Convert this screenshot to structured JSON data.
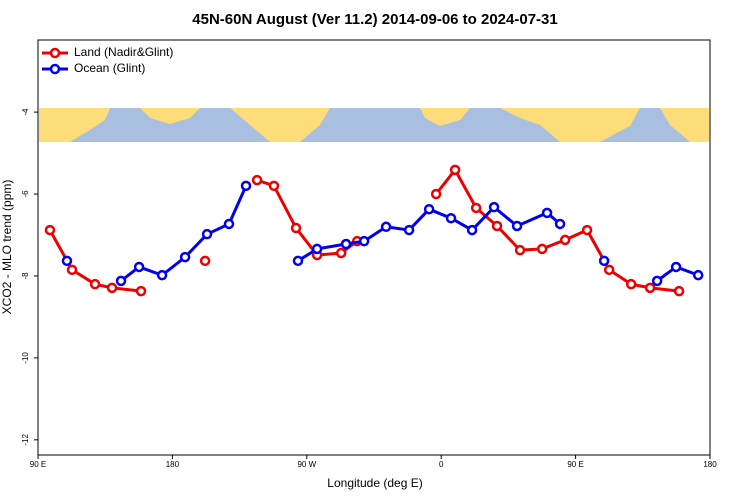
{
  "chart_data": {
    "type": "line",
    "title": "45N-60N August (Ver 11.2)   2014-09-06 to 2024-07-31",
    "x_label": "Longitude (deg E)",
    "y_label": "XCO2 - MLO trend (ppm)",
    "xlim": [
      90,
      540
    ],
    "xticks": [
      {
        "value": 90,
        "label": "90 E"
      },
      180,
      {
        "value": 270,
        "label": "90 W"
      },
      {
        "value": 360,
        "label": "0"
      },
      {
        "value": 450,
        "label": "90 E"
      },
      {
        "value": 540,
        "label": "180"
      }
    ],
    "ylim": [
      -12.37,
      -2.24
    ],
    "yticks": [
      -4,
      -6,
      -8,
      -10,
      -12
    ],
    "legend": "upper left",
    "series": [
      {
        "name": "Land (Nadir&Glint)",
        "color": "#ee0000",
        "x": [
          98,
          112.8,
          128.2,
          139.6,
          159,
          null,
          201.9,
          null,
          236.7,
          248,
          262.8,
          276.9,
          293,
          303.7,
          null,
          356.6,
          369.3,
          383.4,
          397.4,
          412.8,
          427.6,
          443,
          457.7,
          472.5,
          487.2,
          499.9,
          519.3
        ],
        "values": [
          -6.88,
          -7.85,
          -8.2,
          -8.29,
          -8.37,
          null,
          -7.63,
          null,
          -5.66,
          -5.8,
          -6.83,
          -7.49,
          -7.44,
          -7.15,
          null,
          -6.0,
          -5.41,
          -6.34,
          -6.78,
          -7.37,
          -7.34,
          -7.12,
          -6.88,
          -7.85,
          -8.2,
          -8.29,
          -8.37
        ]
      },
      {
        "name": "Ocean (Glint)",
        "color": "#0000ee",
        "x": [
          109.4,
          null,
          145.6,
          157.7,
          173.1,
          188.5,
          203.2,
          217.9,
          229.3,
          null,
          264.1,
          276.9,
          296.3,
          308.4,
          323.1,
          338.5,
          351.9,
          366.6,
          380.7,
          395.4,
          410.8,
          430.9,
          439.6,
          null,
          469.1,
          null,
          504.6,
          517.3,
          532.1
        ],
        "values": [
          -7.63,
          null,
          -8.12,
          -7.78,
          -7.98,
          -7.54,
          -6.98,
          -6.73,
          -5.8,
          null,
          -7.63,
          -7.34,
          -7.22,
          -7.15,
          -6.8,
          -6.88,
          -6.37,
          -6.59,
          -6.88,
          -6.32,
          -6.78,
          -6.46,
          -6.73,
          null,
          -7.63,
          null,
          -8.12,
          -7.78,
          -7.98
        ]
      }
    ]
  }
}
